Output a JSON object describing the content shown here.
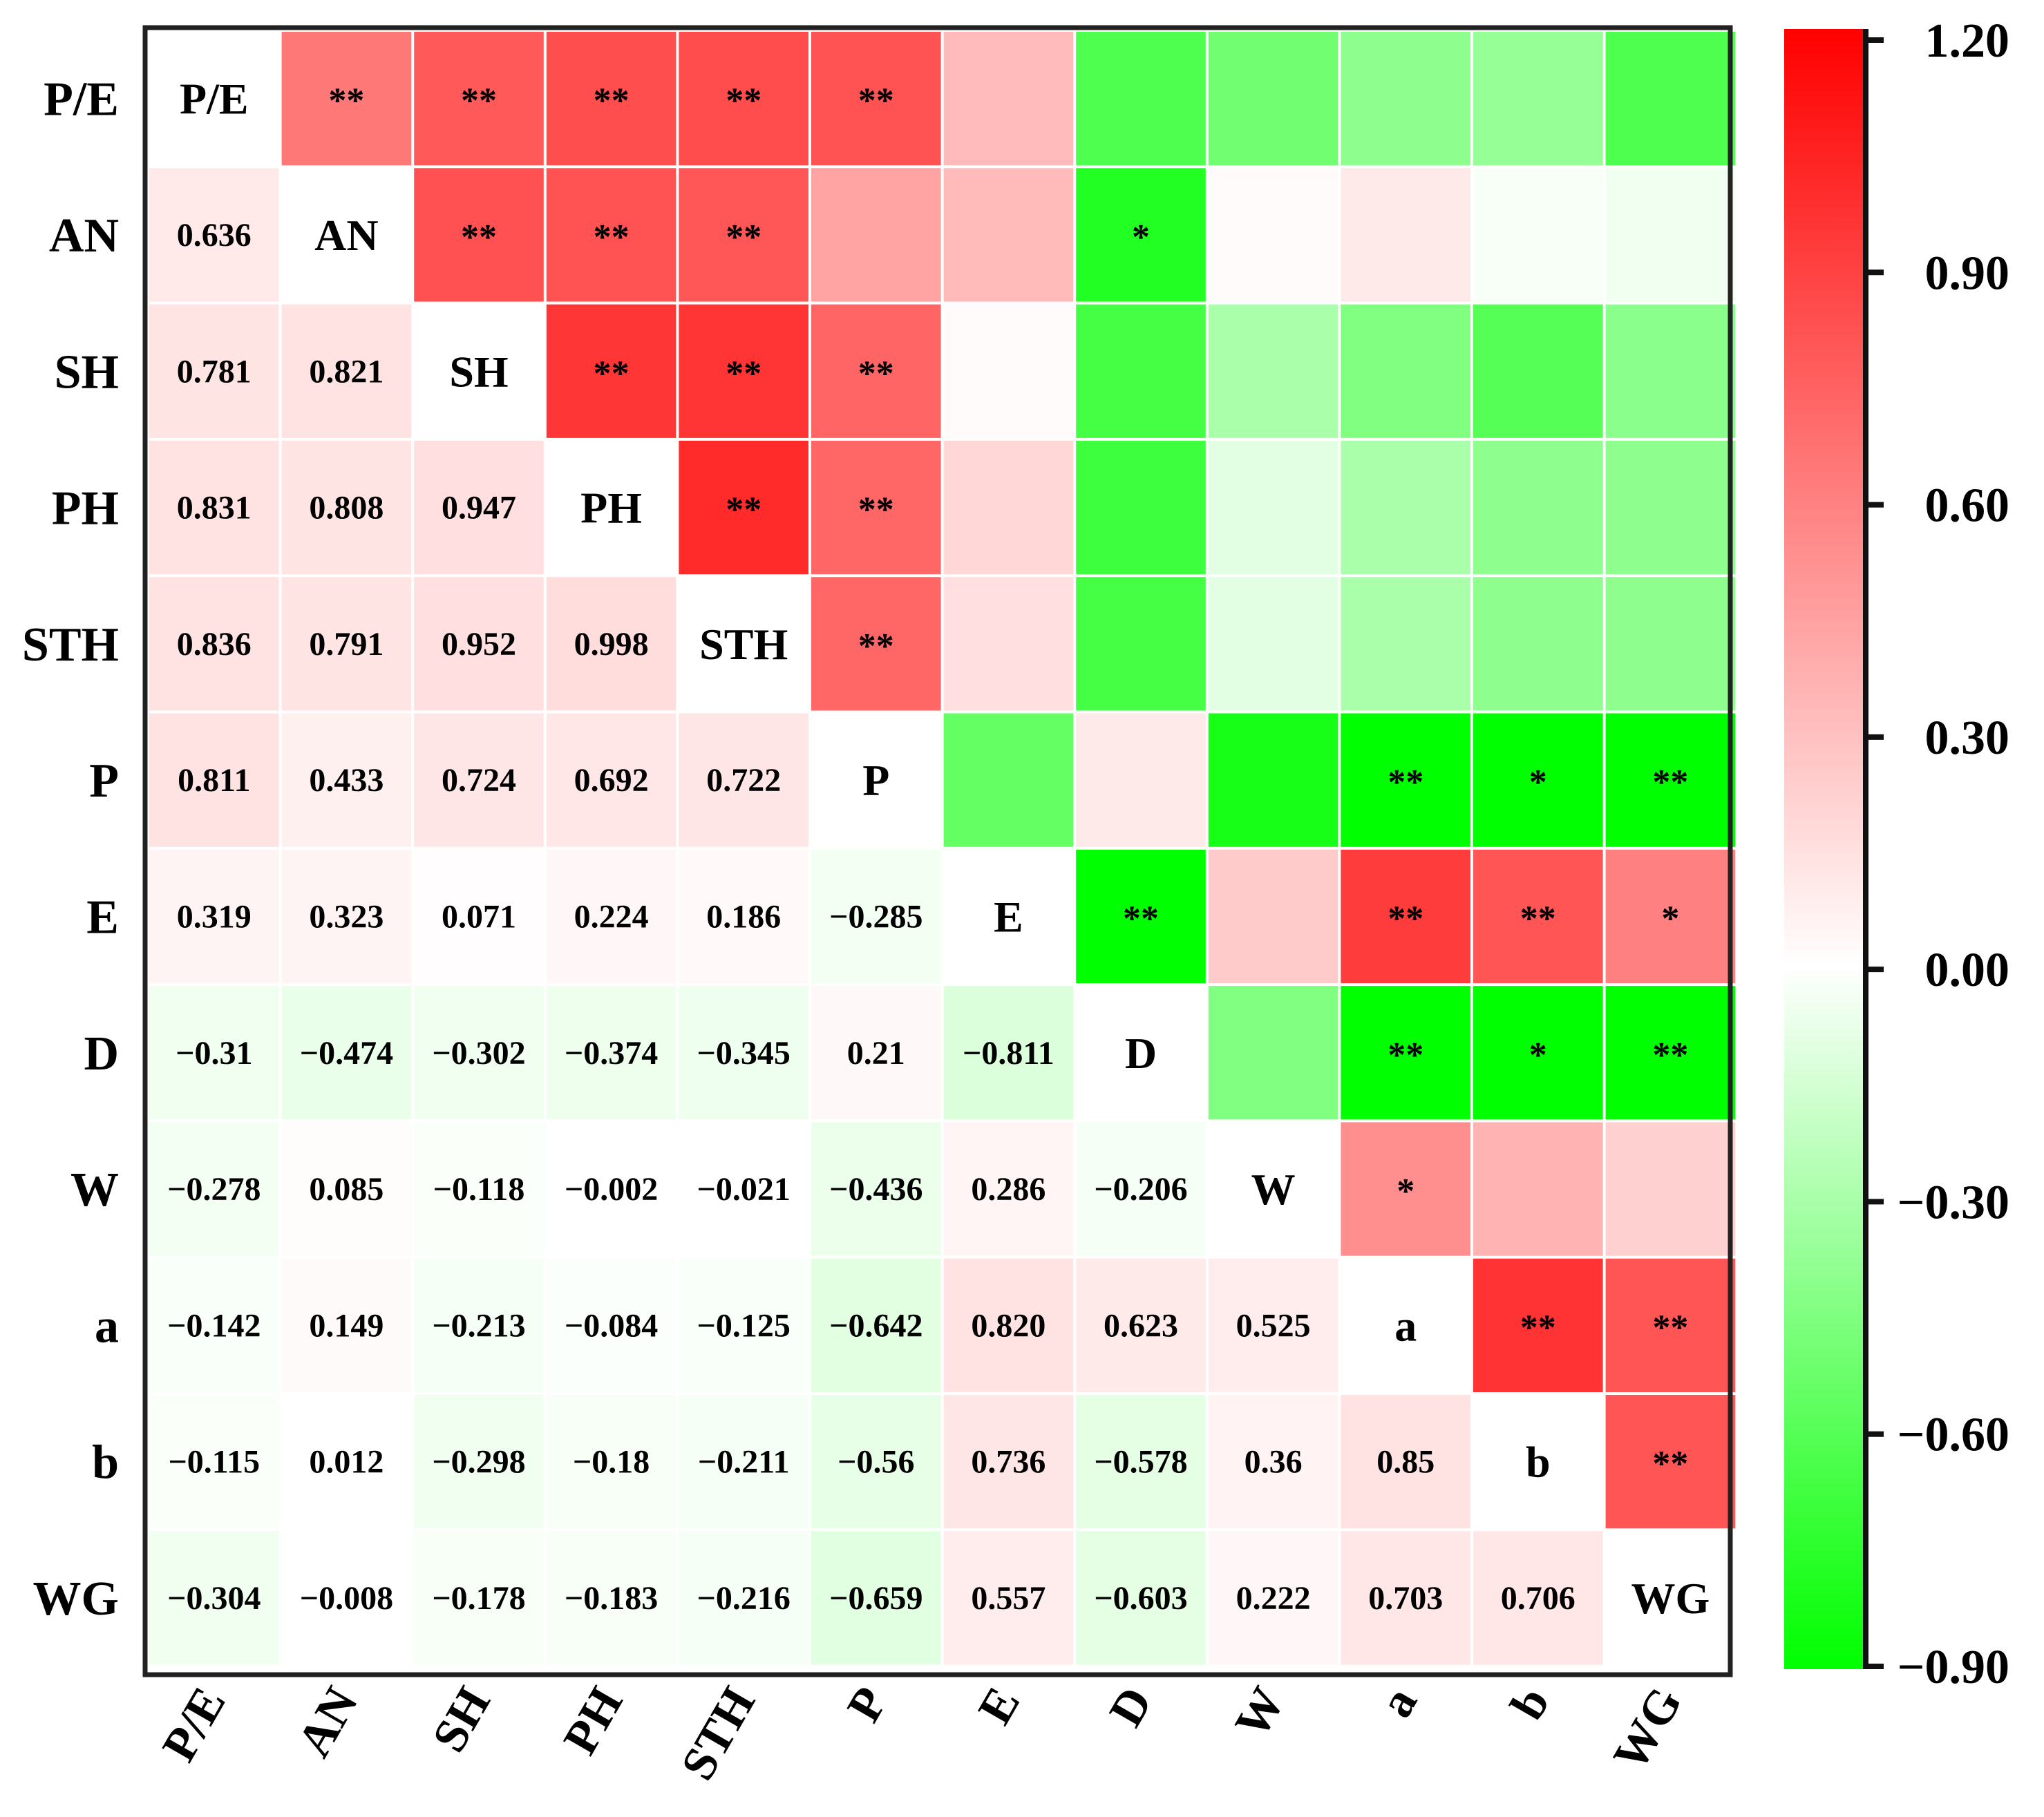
{
  "chart_data": {
    "type": "heatmap",
    "title": "",
    "variables": [
      "P/E",
      "AN",
      "SH",
      "PH",
      "STH",
      "P",
      "E",
      "D",
      "W",
      "a",
      "b",
      "WG"
    ],
    "lower_values": [
      [
        null,
        null,
        null,
        null,
        null,
        null,
        null,
        null,
        null,
        null,
        null,
        null
      ],
      [
        "0.636",
        null,
        null,
        null,
        null,
        null,
        null,
        null,
        null,
        null,
        null,
        null
      ],
      [
        "0.781",
        "0.821",
        null,
        null,
        null,
        null,
        null,
        null,
        null,
        null,
        null,
        null
      ],
      [
        "0.831",
        "0.808",
        "0.947",
        null,
        null,
        null,
        null,
        null,
        null,
        null,
        null,
        null
      ],
      [
        "0.836",
        "0.791",
        "0.952",
        "0.998",
        null,
        null,
        null,
        null,
        null,
        null,
        null,
        null
      ],
      [
        "0.811",
        "0.433",
        "0.724",
        "0.692",
        "0.722",
        null,
        null,
        null,
        null,
        null,
        null,
        null
      ],
      [
        "0.319",
        "0.323",
        "0.071",
        "0.224",
        "0.186",
        "−0.285",
        null,
        null,
        null,
        null,
        null,
        null
      ],
      [
        "−0.31",
        "−0.474",
        "−0.302",
        "−0.374",
        "−0.345",
        "0.21",
        "−0.811",
        null,
        null,
        null,
        null,
        null
      ],
      [
        "−0.278",
        "0.085",
        "−0.118",
        "−0.002",
        "−0.021",
        "−0.436",
        "0.286",
        "−0.206",
        null,
        null,
        null,
        null
      ],
      [
        "−0.142",
        "0.149",
        "−0.213",
        "−0.084",
        "−0.125",
        "−0.642",
        "0.820",
        "0.623",
        "0.525",
        null,
        null,
        null
      ],
      [
        "−0.115",
        "0.012",
        "−0.298",
        "−0.18",
        "−0.211",
        "−0.56",
        "0.736",
        "−0.578",
        "0.36",
        "0.85",
        null,
        null
      ],
      [
        "−0.304",
        "−0.008",
        "−0.178",
        "−0.183",
        "−0.216",
        "−0.659",
        "0.557",
        "−0.603",
        "0.222",
        "0.703",
        "0.706",
        null
      ]
    ],
    "upper_color_values": [
      [
        null,
        0.636,
        0.781,
        0.831,
        0.836,
        0.811,
        0.319,
        -0.62,
        -0.5,
        -0.4,
        -0.37,
        -0.62
      ],
      [
        null,
        null,
        0.821,
        0.808,
        0.791,
        0.433,
        0.323,
        -0.78,
        0.02,
        0.1,
        -0.03,
        -0.05
      ],
      [
        null,
        null,
        null,
        0.947,
        0.952,
        0.724,
        0.02,
        -0.66,
        -0.3,
        -0.45,
        -0.6,
        -0.41
      ],
      [
        null,
        null,
        null,
        null,
        0.998,
        0.722,
        0.186,
        -0.68,
        -0.1,
        -0.3,
        -0.4,
        -0.4
      ],
      [
        null,
        null,
        null,
        null,
        null,
        0.722,
        0.15,
        -0.66,
        -0.1,
        -0.3,
        -0.4,
        -0.4
      ],
      [
        null,
        null,
        null,
        null,
        null,
        null,
        -0.55,
        0.1,
        -0.82,
        -0.92,
        -0.9,
        -0.92
      ],
      [
        null,
        null,
        null,
        null,
        null,
        null,
        null,
        -0.92,
        0.25,
        0.92,
        0.8,
        0.6
      ],
      [
        null,
        null,
        null,
        null,
        null,
        null,
        null,
        null,
        -0.45,
        -0.92,
        -0.9,
        -0.92
      ],
      [
        null,
        null,
        null,
        null,
        null,
        null,
        null,
        null,
        null,
        0.525,
        0.36,
        0.222
      ],
      [
        null,
        null,
        null,
        null,
        null,
        null,
        null,
        null,
        null,
        null,
        0.96,
        0.8
      ],
      [
        null,
        null,
        null,
        null,
        null,
        null,
        null,
        null,
        null,
        null,
        null,
        0.8
      ],
      [
        null,
        null,
        null,
        null,
        null,
        null,
        null,
        null,
        null,
        null,
        null,
        null
      ]
    ],
    "significance": [
      [
        null,
        "**",
        "**",
        "**",
        "**",
        "**",
        "",
        "",
        "",
        "",
        "",
        ""
      ],
      [
        null,
        null,
        "**",
        "**",
        "**",
        "",
        "",
        "*",
        "",
        "",
        "",
        ""
      ],
      [
        null,
        null,
        null,
        "**",
        "**",
        "**",
        "",
        "",
        "",
        "",
        "",
        ""
      ],
      [
        null,
        null,
        null,
        null,
        "**",
        "**",
        "",
        "",
        "",
        "",
        "",
        ""
      ],
      [
        null,
        null,
        null,
        null,
        null,
        "**",
        "",
        "",
        "",
        "",
        "",
        ""
      ],
      [
        null,
        null,
        null,
        null,
        null,
        null,
        "",
        "",
        "",
        "**",
        "*",
        "**"
      ],
      [
        null,
        null,
        null,
        null,
        null,
        null,
        null,
        "**",
        "",
        "**",
        "**",
        "*"
      ],
      [
        null,
        null,
        null,
        null,
        null,
        null,
        null,
        null,
        "",
        "**",
        "*",
        "**"
      ],
      [
        null,
        null,
        null,
        null,
        null,
        null,
        null,
        null,
        null,
        "*",
        "",
        ""
      ],
      [
        null,
        null,
        null,
        null,
        null,
        null,
        null,
        null,
        null,
        null,
        "**",
        "**"
      ],
      [
        null,
        null,
        null,
        null,
        null,
        null,
        null,
        null,
        null,
        null,
        null,
        "**"
      ],
      [
        null,
        null,
        null,
        null,
        null,
        null,
        null,
        null,
        null,
        null,
        null,
        null
      ]
    ],
    "color_scale": {
      "min": -0.9,
      "max": 1.2,
      "low_color": "#00ff00",
      "mid_color": "#ffffff",
      "high_color": "#ff0000",
      "ticks": [
        "1.20",
        "0.90",
        "0.60",
        "0.30",
        "0.00",
        "−0.30",
        "−0.60",
        "−0.90"
      ],
      "tick_values": [
        1.2,
        0.9,
        0.6,
        0.3,
        0.0,
        -0.3,
        -0.6,
        -0.9
      ]
    },
    "lower_triangle_display": "muted",
    "diagonal": "variable names",
    "legend": "right"
  }
}
